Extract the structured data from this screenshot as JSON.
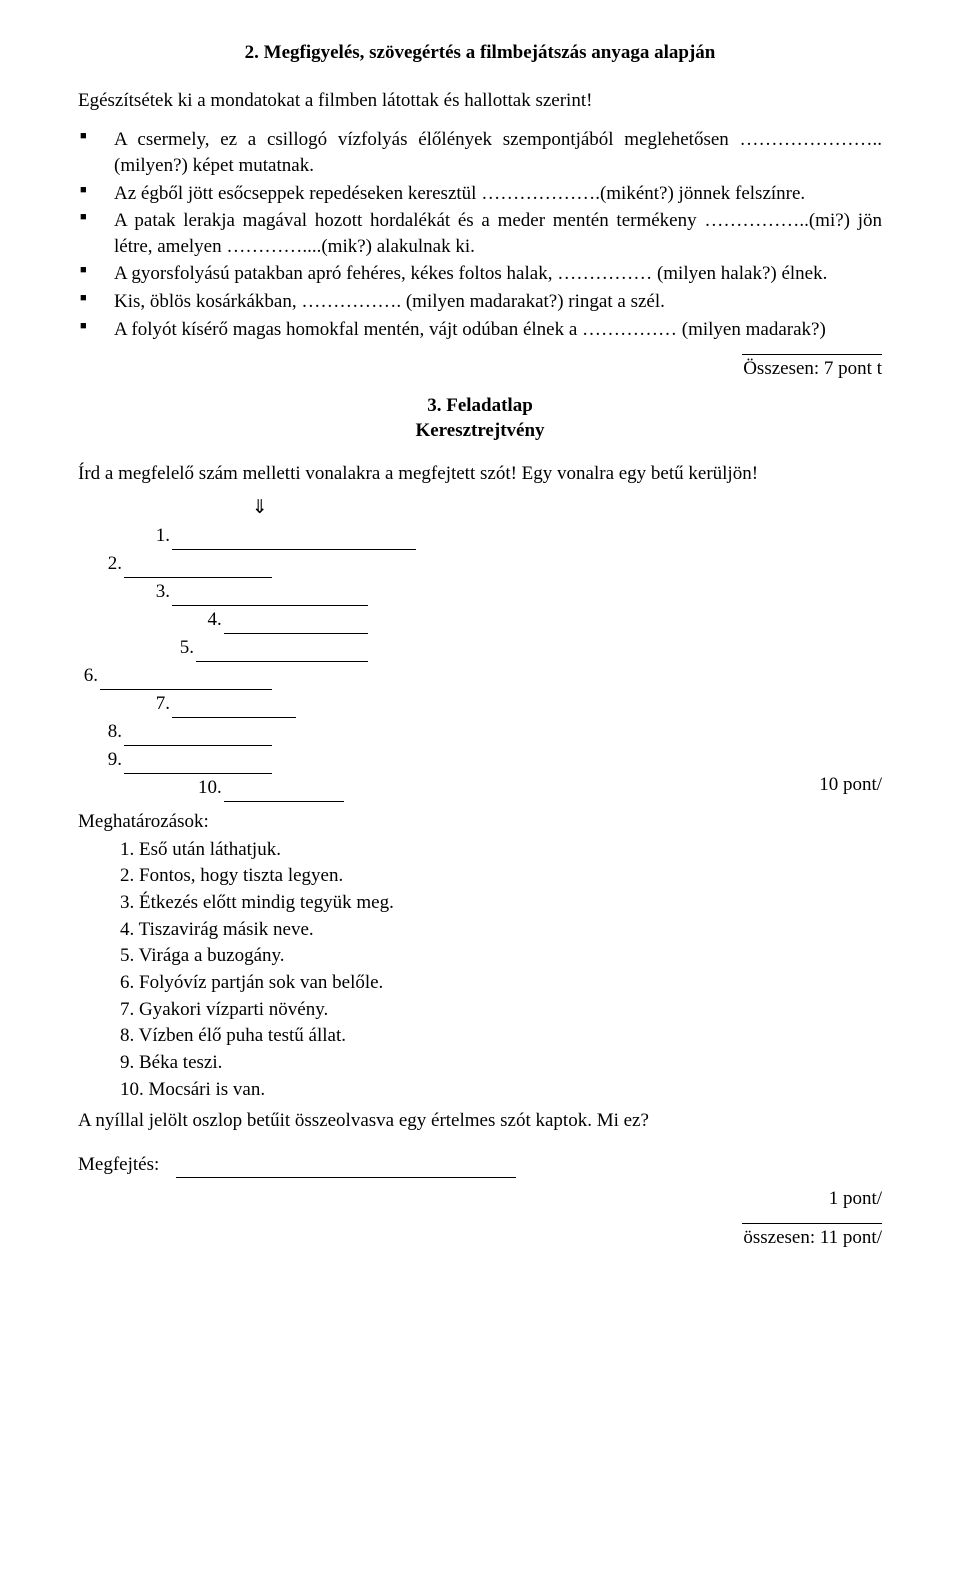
{
  "title1": "2. Megfigyelés, szövegértés a filmbejátszás anyaga alapján",
  "intro1": "Egészítsétek ki a mondatokat a filmben látottak és hallottak szerint!",
  "bullets": [
    "A csermely, ez a csillogó vízfolyás élőlények szempontjából meglehetősen …………………..(milyen?) képet mutatnak.",
    "Az égből jött esőcseppek repedéseken keresztül ……………….(miként?) jönnek felszínre.",
    "A patak lerakja magával hozott hordalékát és a meder mentén termékeny ……………..(mi?) jön létre, amelyen …………....(mik?) alakulnak ki.",
    "A gyorsfolyású patakban apró fehéres, kékes foltos halak, …………… (milyen halak?) élnek.",
    "Kis, öblös kosárkákban, ……………. (milyen madarakat?) ringat a szél.",
    "A folyót kísérő magas homokfal mentén, vájt odúban élnek a …………… (milyen madarak?)"
  ],
  "score1": "Összesen:  7 pont t",
  "title2a": "3. Feladatlap",
  "title2b": "Keresztrejtvény",
  "intro2": "Írd a megfelelő szám melletti vonalakra a megfejtett szót! Egy vonalra egy betű kerüljön!",
  "arrow": "⇓",
  "crossword": {
    "arrow_col": 6,
    "rows": [
      {
        "num": "1.",
        "start": 3,
        "len": 10
      },
      {
        "num": "2.",
        "start": 1,
        "len": 6
      },
      {
        "num": "3.",
        "start": 3,
        "len": 8
      },
      {
        "num": "4.",
        "start": 5,
        "len": 6
      },
      {
        "num": "5.",
        "start": 4,
        "len": 7
      },
      {
        "num": "6.",
        "start": 0,
        "len": 7
      },
      {
        "num": "7.",
        "start": 3,
        "len": 5
      },
      {
        "num": "8.",
        "start": 1,
        "len": 6
      },
      {
        "num": "9.",
        "start": 1,
        "len": 6
      },
      {
        "num": "10.",
        "start": 5,
        "len": 5
      }
    ]
  },
  "score2": "10 pont/",
  "clue_header": "Meghatározások:",
  "clues": [
    "1. Eső után láthatjuk.",
    "2. Fontos, hogy tiszta legyen.",
    "3. Étkezés előtt mindig tegyük meg.",
    "4. Tiszavirág másik neve.",
    "5. Virága a buzogány.",
    "6. Folyóvíz partján sok van belőle.",
    "7. Gyakori vízparti növény.",
    "8. Vízben élő puha testű állat.",
    "9. Béka teszi.",
    "10. Mocsári is van."
  ],
  "post_clue": "A nyíllal jelölt oszlop betűit összeolvasva egy értelmes szót kaptok. Mi ez?",
  "solution_label": "Megfejtés:",
  "score3": "1 pont/",
  "score4": "összesen: 11 pont/"
}
